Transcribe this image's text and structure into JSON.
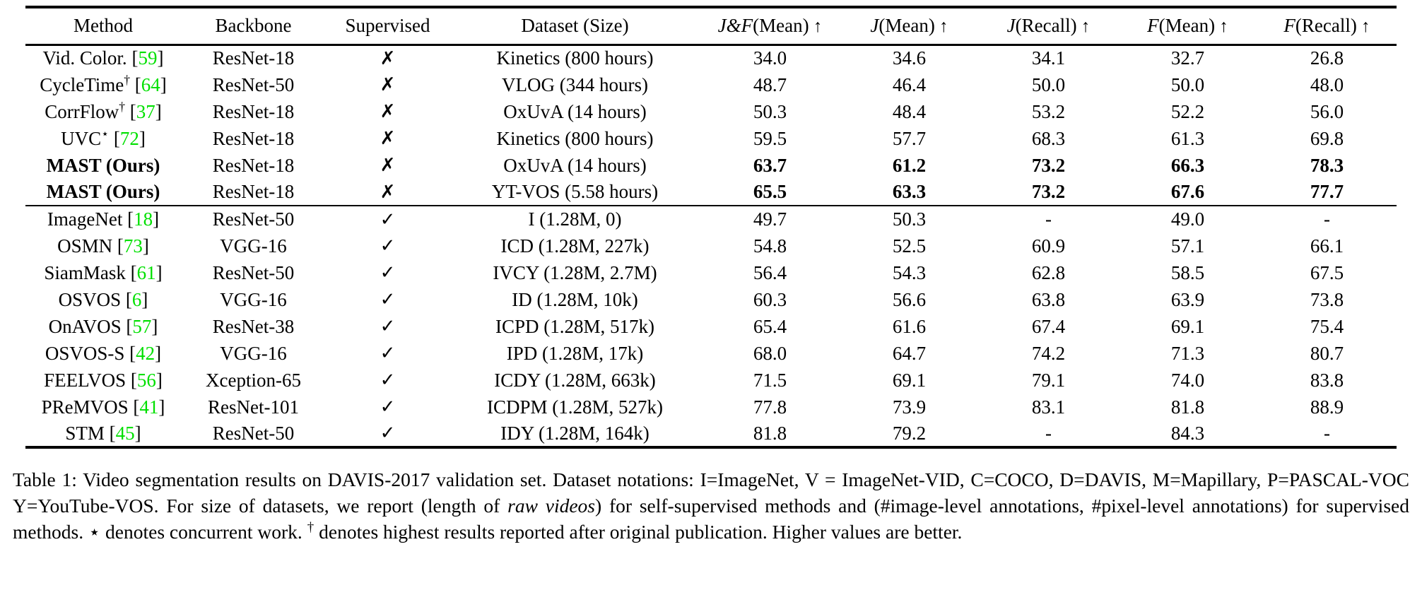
{
  "colors": {
    "citation_green": "#00e000",
    "text": "#000000",
    "background": "#ffffff"
  },
  "table": {
    "columns": [
      {
        "name": "column-header-method",
        "label": "Method"
      },
      {
        "name": "column-header-backbone",
        "label": "Backbone"
      },
      {
        "name": "column-header-supervised",
        "label": "Supervised"
      },
      {
        "name": "column-header-dataset",
        "label": "Dataset (Size)"
      },
      {
        "name": "column-header-jf-mean",
        "cal": "J&F",
        "rest": "(Mean)",
        "arrow": "↑"
      },
      {
        "name": "column-header-j-mean",
        "cal": "J",
        "rest": "(Mean)",
        "arrow": "↑"
      },
      {
        "name": "column-header-j-recall",
        "cal": "J",
        "rest": "(Recall)",
        "arrow": "↑"
      },
      {
        "name": "column-header-f-mean",
        "cal": "F",
        "rest": "(Mean)",
        "arrow": "↑"
      },
      {
        "name": "column-header-f-recall",
        "cal": "F",
        "rest": "(Recall)",
        "arrow": "↑"
      }
    ],
    "sections": [
      {
        "name": "self-supervised",
        "rows": [
          {
            "method": {
              "name": "Vid. Color.",
              "sup": "",
              "cite": "59"
            },
            "backbone": "ResNet-18",
            "supervised": "✗",
            "dataset": "Kinetics (800 hours)",
            "values": [
              "34.0",
              "34.6",
              "34.1",
              "32.7",
              "26.8"
            ],
            "bold": false
          },
          {
            "method": {
              "name": "CycleTime",
              "sup": "†",
              "cite": "64"
            },
            "backbone": "ResNet-50",
            "supervised": "✗",
            "dataset": "VLOG (344 hours)",
            "values": [
              "48.7",
              "46.4",
              "50.0",
              "50.0",
              "48.0"
            ],
            "bold": false
          },
          {
            "method": {
              "name": "CorrFlow",
              "sup": "†",
              "cite": "37"
            },
            "backbone": "ResNet-18",
            "supervised": "✗",
            "dataset": "OxUvA (14 hours)",
            "values": [
              "50.3",
              "48.4",
              "53.2",
              "52.2",
              "56.0"
            ],
            "bold": false
          },
          {
            "method": {
              "name": "UVC",
              "sup": "⋆",
              "cite": "72"
            },
            "backbone": "ResNet-18",
            "supervised": "✗",
            "dataset": "Kinetics (800 hours)",
            "values": [
              "59.5",
              "57.7",
              "68.3",
              "61.3",
              "69.8"
            ],
            "bold": false
          },
          {
            "method": {
              "name": "MAST (Ours)",
              "sup": "",
              "cite": ""
            },
            "backbone": "ResNet-18",
            "supervised": "✗",
            "dataset": "OxUvA (14 hours)",
            "values": [
              "63.7",
              "61.2",
              "73.2",
              "66.3",
              "78.3"
            ],
            "bold": true
          },
          {
            "method": {
              "name": "MAST (Ours)",
              "sup": "",
              "cite": ""
            },
            "backbone": "ResNet-18",
            "supervised": "✗",
            "dataset": "YT-VOS (5.58 hours)",
            "values": [
              "65.5",
              "63.3",
              "73.2",
              "67.6",
              "77.7"
            ],
            "bold": true
          }
        ]
      },
      {
        "name": "supervised",
        "rows": [
          {
            "method": {
              "name": "ImageNet",
              "sup": "",
              "cite": "18"
            },
            "backbone": "ResNet-50",
            "supervised": "✓",
            "dataset": "I (1.28M, 0)",
            "values": [
              "49.7",
              "50.3",
              "-",
              "49.0",
              "-"
            ],
            "bold": false
          },
          {
            "method": {
              "name": "OSMN",
              "sup": "",
              "cite": "73"
            },
            "backbone": "VGG-16",
            "supervised": "✓",
            "dataset": "ICD (1.28M, 227k)",
            "values": [
              "54.8",
              "52.5",
              "60.9",
              "57.1",
              "66.1"
            ],
            "bold": false
          },
          {
            "method": {
              "name": "SiamMask",
              "sup": "",
              "cite": "61"
            },
            "backbone": "ResNet-50",
            "supervised": "✓",
            "dataset": "IVCY (1.28M, 2.7M)",
            "values": [
              "56.4",
              "54.3",
              "62.8",
              "58.5",
              "67.5"
            ],
            "bold": false
          },
          {
            "method": {
              "name": "OSVOS",
              "sup": "",
              "cite": "6"
            },
            "backbone": "VGG-16",
            "supervised": "✓",
            "dataset": "ID (1.28M, 10k)",
            "values": [
              "60.3",
              "56.6",
              "63.8",
              "63.9",
              "73.8"
            ],
            "bold": false
          },
          {
            "method": {
              "name": "OnAVOS",
              "sup": "",
              "cite": "57"
            },
            "backbone": "ResNet-38",
            "supervised": "✓",
            "dataset": "ICPD (1.28M, 517k)",
            "values": [
              "65.4",
              "61.6",
              "67.4",
              "69.1",
              "75.4"
            ],
            "bold": false
          },
          {
            "method": {
              "name": "OSVOS-S",
              "sup": "",
              "cite": "42"
            },
            "backbone": "VGG-16",
            "supervised": "✓",
            "dataset": "IPD (1.28M, 17k)",
            "values": [
              "68.0",
              "64.7",
              "74.2",
              "71.3",
              "80.7"
            ],
            "bold": false
          },
          {
            "method": {
              "name": "FEELVOS",
              "sup": "",
              "cite": "56"
            },
            "backbone": "Xception-65",
            "supervised": "✓",
            "dataset": "ICDY (1.28M, 663k)",
            "values": [
              "71.5",
              "69.1",
              "79.1",
              "74.0",
              "83.8"
            ],
            "bold": false
          },
          {
            "method": {
              "name": "PReMVOS",
              "sup": "",
              "cite": "41"
            },
            "backbone": "ResNet-101",
            "supervised": "✓",
            "dataset": "ICDPM (1.28M, 527k)",
            "values": [
              "77.8",
              "73.9",
              "83.1",
              "81.8",
              "88.9"
            ],
            "bold": false
          },
          {
            "method": {
              "name": "STM",
              "sup": "",
              "cite": "45"
            },
            "backbone": "ResNet-50",
            "supervised": "✓",
            "dataset": "IDY (1.28M, 164k)",
            "values": [
              "81.8",
              "79.2",
              "-",
              "84.3",
              "-"
            ],
            "bold": false
          }
        ]
      }
    ]
  },
  "caption": {
    "segments": [
      {
        "t": "Table 1:  Video segmentation results on DAVIS-2017 validation set.  Dataset notations:  I=ImageNet, V = ImageNet-VID, C=COCO, D=DAVIS, M=Mapillary, P=PASCAL-VOC Y=YouTube-VOS. For size of datasets, we report (length of ",
        "s": "n"
      },
      {
        "t": "raw videos",
        "s": "i"
      },
      {
        "t": ") for self-supervised methods and (#image-level annotations, #pixel-level annotations) for supervised methods.  ",
        "s": "n"
      },
      {
        "t": "⋆",
        "s": "n"
      },
      {
        "t": " denotes concurrent work.  ",
        "s": "n"
      },
      {
        "t": "†",
        "s": "sup"
      },
      {
        "t": " denotes highest results reported after original publication. Higher values are better.",
        "s": "n"
      }
    ]
  }
}
